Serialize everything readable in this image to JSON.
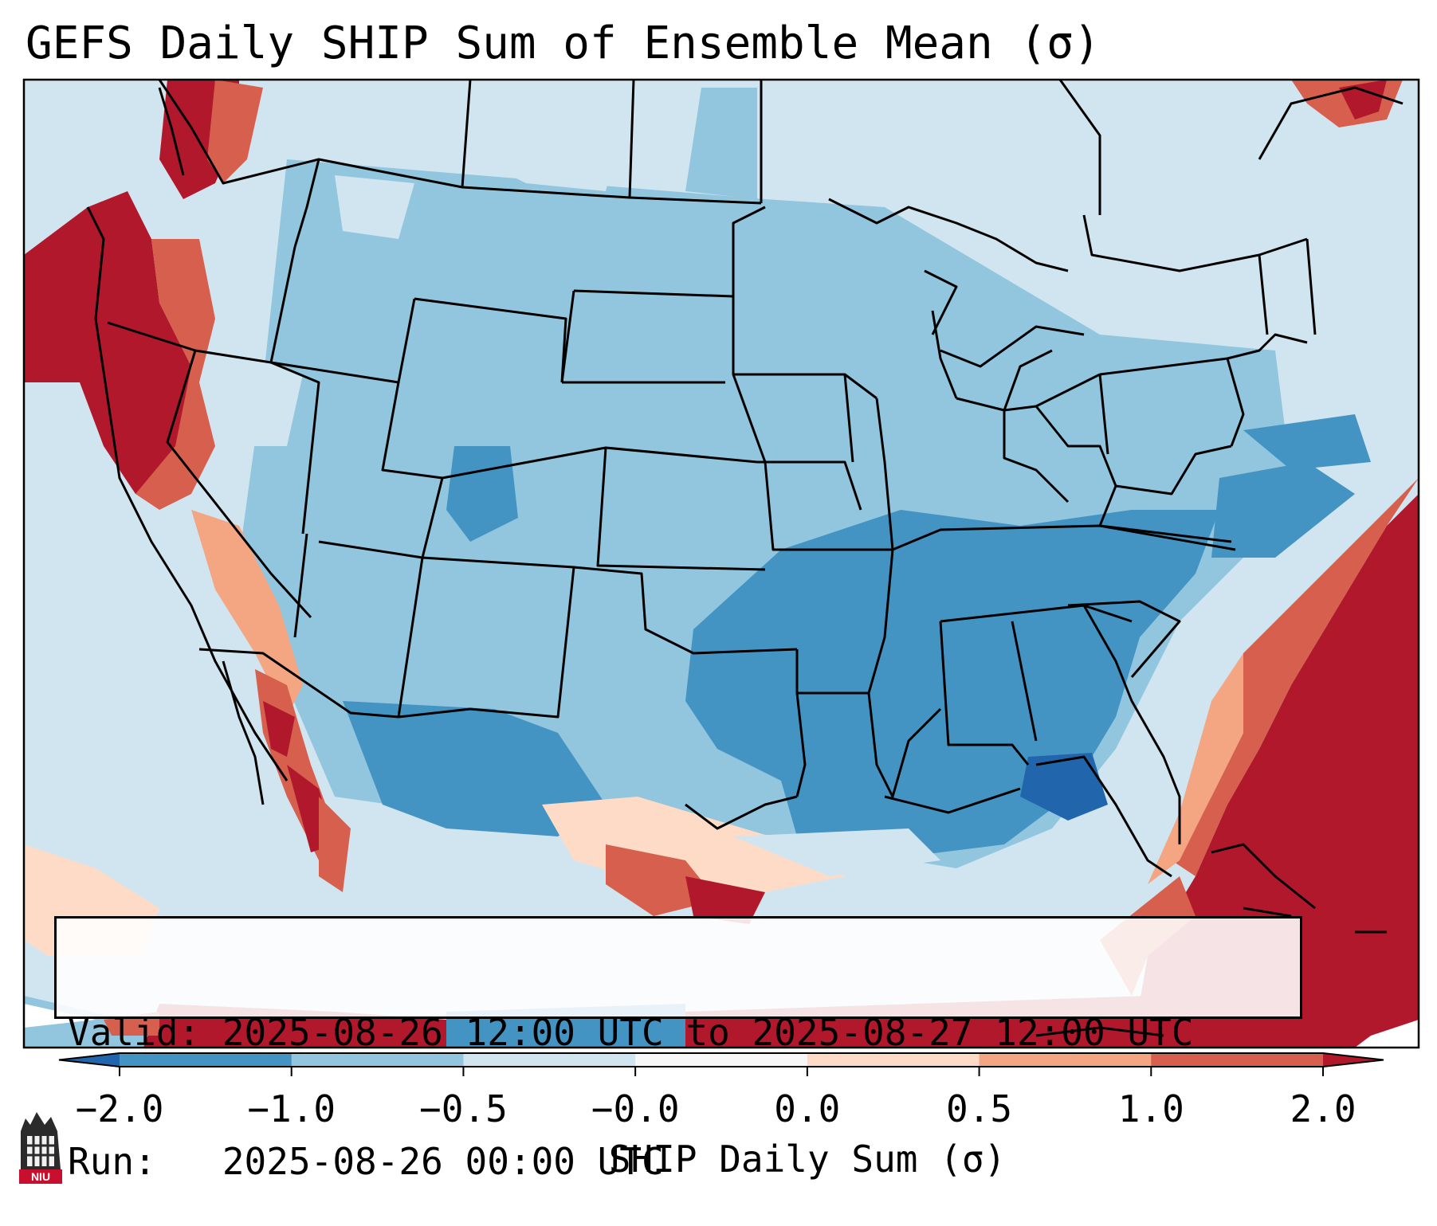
{
  "title": "GEFS Daily SHIP Sum of Ensemble Mean (σ)",
  "info": {
    "valid": "Valid: 2025-08-26 12:00 UTC to 2025-08-27 12:00 UTC",
    "run": "Run:   2025-08-26 00:00 UTC"
  },
  "colorbar": {
    "label": "SHIP Daily Sum (σ)",
    "ticks": [
      "−2.0",
      "−1.0",
      "−0.5",
      "−0.0",
      "0.0",
      "0.5",
      "1.0",
      "2.0"
    ],
    "bins": [
      {
        "from": null,
        "to": -2.0,
        "color": "#2166ac"
      },
      {
        "from": -2.0,
        "to": -1.0,
        "color": "#4393c3"
      },
      {
        "from": -1.0,
        "to": -0.5,
        "color": "#92c5de"
      },
      {
        "from": -0.5,
        "to": -0.0,
        "color": "#d1e5f0"
      },
      {
        "from": -0.0,
        "to": 0.0,
        "color": "#f7f7f7"
      },
      {
        "from": 0.0,
        "to": 0.5,
        "color": "#fddbc7"
      },
      {
        "from": 0.5,
        "to": 1.0,
        "color": "#f4a582"
      },
      {
        "from": 1.0,
        "to": 2.0,
        "color": "#d6604d"
      },
      {
        "from": 2.0,
        "to": null,
        "color": "#b2182b"
      }
    ]
  },
  "logo": {
    "text": "NIU"
  }
}
